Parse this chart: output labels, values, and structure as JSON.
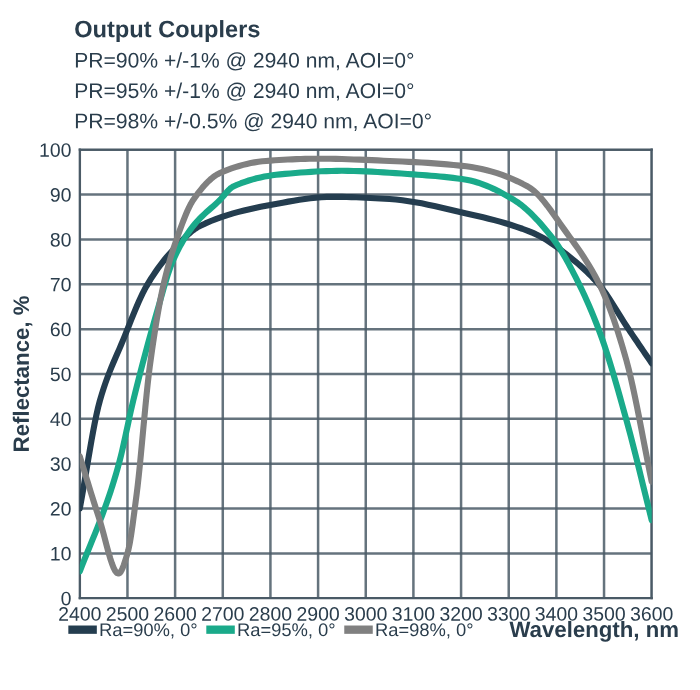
{
  "chart_data": {
    "type": "line",
    "title": "Output Couplers",
    "subtitle": "PR=90% +/-1% @ 2940 nm, AOI=0°",
    "annotations": [
      "PR=95% +/-1% @ 2940 nm, AOI=0°",
      "PR=98% +/-0.5% @ 2940 nm, AOI=0°"
    ],
    "xlabel": "Wavelength, nm",
    "ylabel": "Reflectance, %",
    "xlim": [
      2400,
      3600
    ],
    "xticks": [
      2400,
      2500,
      2600,
      2700,
      2800,
      2900,
      3000,
      3100,
      3200,
      3300,
      3400,
      3500,
      3600
    ],
    "ylim": [
      0,
      100
    ],
    "yticks": [
      0,
      10,
      20,
      30,
      40,
      50,
      60,
      70,
      80,
      90,
      100
    ],
    "grid": true,
    "legend": "bottom",
    "marker": "none",
    "line_style": "solid",
    "series": [
      {
        "name": "Ra=90%, 0°",
        "color": "#243d4f",
        "x": [
          2400,
          2442,
          2491,
          2540,
          2596,
          2652,
          2791,
          2930,
          3050,
          3211,
          3352,
          3436,
          3492,
          3547,
          3600
        ],
        "values": [
          20,
          44,
          57.6,
          69.6,
          77.7,
          83,
          87.5,
          89.5,
          89,
          85.8,
          81.4,
          75.4,
          69.6,
          60.7,
          52.4
        ]
      },
      {
        "name": "Ra=95%, 0°",
        "color": "#1aaa8a",
        "x": [
          2400,
          2463,
          2484,
          2512,
          2561,
          2596,
          2638,
          2694,
          2722,
          2820,
          2950,
          3100,
          3211,
          3311,
          3394,
          3436,
          3492,
          3547,
          3600
        ],
        "values": [
          6,
          23.3,
          30.8,
          44,
          63.5,
          75.4,
          83,
          88.8,
          91.8,
          94.5,
          95.3,
          94.5,
          93.3,
          88.8,
          80,
          72.5,
          59,
          39.7,
          17.4
        ]
      },
      {
        "name": "Ra=98%, 0°",
        "color": "#808080",
        "x": [
          2400,
          2440,
          2481,
          2500,
          2519,
          2547,
          2575,
          2603,
          2638,
          2694,
          2791,
          2900,
          3050,
          3211,
          3340,
          3422,
          3492,
          3547,
          3600
        ],
        "values": [
          31.6,
          18,
          5.5,
          10,
          23,
          51.8,
          69.6,
          80,
          88.8,
          94.8,
          97.5,
          98,
          97.5,
          96.3,
          91.8,
          81.4,
          69.6,
          53,
          26
        ]
      }
    ]
  }
}
